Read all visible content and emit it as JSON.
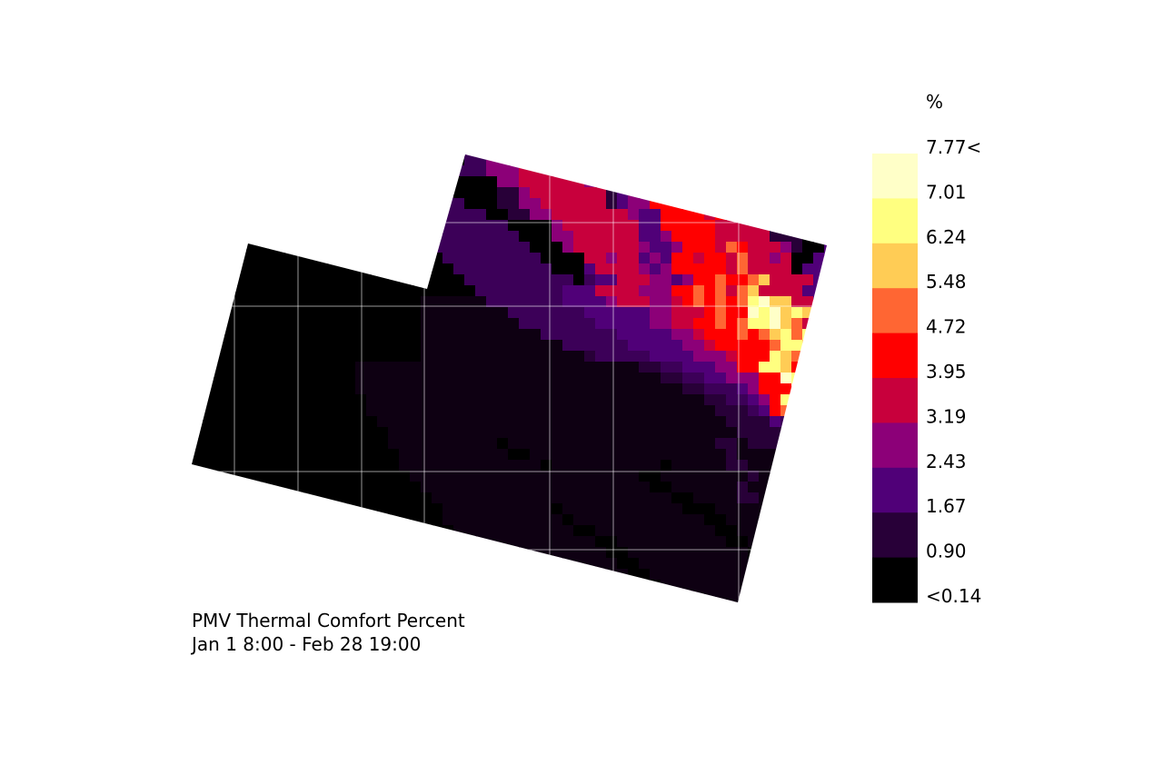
{
  "chart_data": {
    "type": "heatmap",
    "title": "PMV Thermal Comfort Percent",
    "subtitle": "Jan 1 8:00 - Feb 28 19:00",
    "legend": {
      "unit": "%",
      "labels": [
        "7.77<",
        "7.01",
        "6.24",
        "5.48",
        "4.72",
        "3.95",
        "3.19",
        "2.43",
        "1.67",
        "0.90",
        "<0.14"
      ],
      "colors": [
        "#ffffc8",
        "#ffff80",
        "#ffcc55",
        "#ff6633",
        "#ff0000",
        "#c8003c",
        "#8c0078",
        "#500078",
        "#280038",
        "#000000"
      ],
      "placement": "right"
    },
    "level_colors": {
      "0": "#000000",
      "1": "#0e0012",
      "2": "#280038",
      "3": "#3c0058",
      "4": "#500078",
      "5": "#8c0078",
      "6": "#c8003c",
      "7": "#ff0000",
      "8": "#ff6633",
      "9": "#ffcc55",
      "A": "#ffff80",
      "B": "#ffffc8"
    },
    "grid_levels": [
      "000000000000000000000000033555666666222455777766666644422220",
      "000000000000000000000000333555666666222455777766666644422220",
      "000000000000000000000000000055666666522465776766667644422240",
      "000000000000000000000033000022566666662455677667666664442220",
      "000000000000000000000333300022556666662455777676666664422220",
      "000000000000000000000333333002255666666654477776766664422240",
      "000000000000000000000333333330000566666664477777666662222444",
      "000000000000000000000333333333000556666664457777666662220444",
      "000000000000000000000033333333300056666665445777687666520044",
      "000000000000000000000003333333330000665664547767768665600440",
      "000000000000000000000000333333333000466665457777768666604440",
      "000000000000000000000000033333333330344666554577877896666440",
      "000000000000000000000000003333333344466665557787868966664400",
      "000000000000000000000111111333333344445666556787878AB9966400",
      "000000000000000000000111111113333333444444556667877BAB9A9600",
      "000000000000000000000111111111333333344444556677878AAB98600",
      "000000000000000000000111111111113333333444445567778789A8A6600",
      "000000000000000000000111111111111133333344444556777778AA96600",
      "00000000000000000000011111111111111123333344445556777A98700",
      "0000000000000001111111111111111111111111122334445577AA976000",
      "000000000000000111111111111111111111111111122334455577BA976000",
      "0000000000000001111111111111111111111111111112233345777BA76000",
      "000000000000000011111111111111111111111111111112233457A960000",
      "00000000000000001111111111111111111111111111111122234786600000",
      "000000000000000001111111111111111111111111111111122224332000000",
      "000000000000000000111111111111111111111111111111112222222200000",
      "000000000000000000111111111101111111111111111111221222111100000",
      "000000000000000000011111111110011111111111111111121111111100000",
      "000000000000000000011111111111110111111111101111122111111100000",
      "000000000000000000001111111111111111111110011111111211111100000",
      "000000000000000000000111111111111111111111001111112111111000000",
      "000000000000000000000011111111111111111111110011112211111000000",
      "000000000000000000000001111111111011111111111000111111111000000",
      "000000000000000000000001111111111101111111111110011112111000000",
      "000000000000000000000000111111111110011111111111001111111000000",
      "000000000000000000000000011111111111100111111111100111111000000",
      "000000000000000000000000011111111111110011111111111011111000000",
      "000000000000000000000000001111111111111001111111111101110000000",
      "000000000000000000000000000111111111111100111111111110110000000",
      "000000000000000000000000000011111111111110011111111111000000000",
      "000000000000000000000000000001111111111111001111111111000000000",
      "000000000000000000000000000000111111111111100111111111000000000"
    ]
  }
}
